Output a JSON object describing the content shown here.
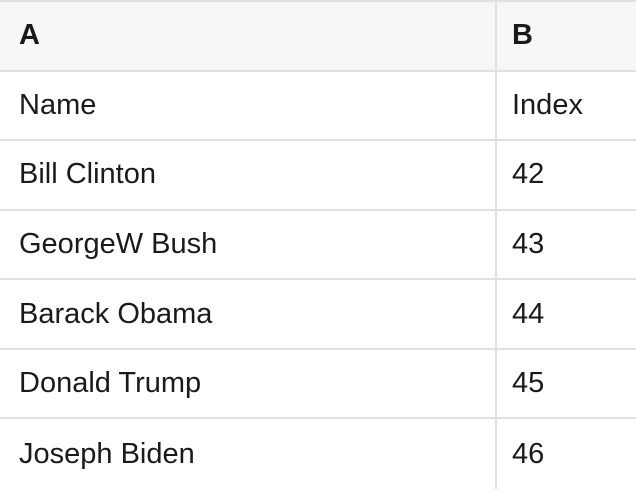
{
  "colors": {
    "header_bg": "#f7f7f7",
    "border": "#e0e0e0",
    "text": "#1a1a1a"
  },
  "table": {
    "column_headers": [
      "A",
      "B"
    ],
    "rows": [
      {
        "a": "Name",
        "b": "Index"
      },
      {
        "a": "Bill Clinton",
        "b": "42"
      },
      {
        "a": "GeorgeW Bush",
        "b": "43"
      },
      {
        "a": "Barack Obama",
        "b": "44"
      },
      {
        "a": "Donald Trump",
        "b": "45"
      },
      {
        "a": "Joseph Biden",
        "b": "46"
      }
    ]
  }
}
